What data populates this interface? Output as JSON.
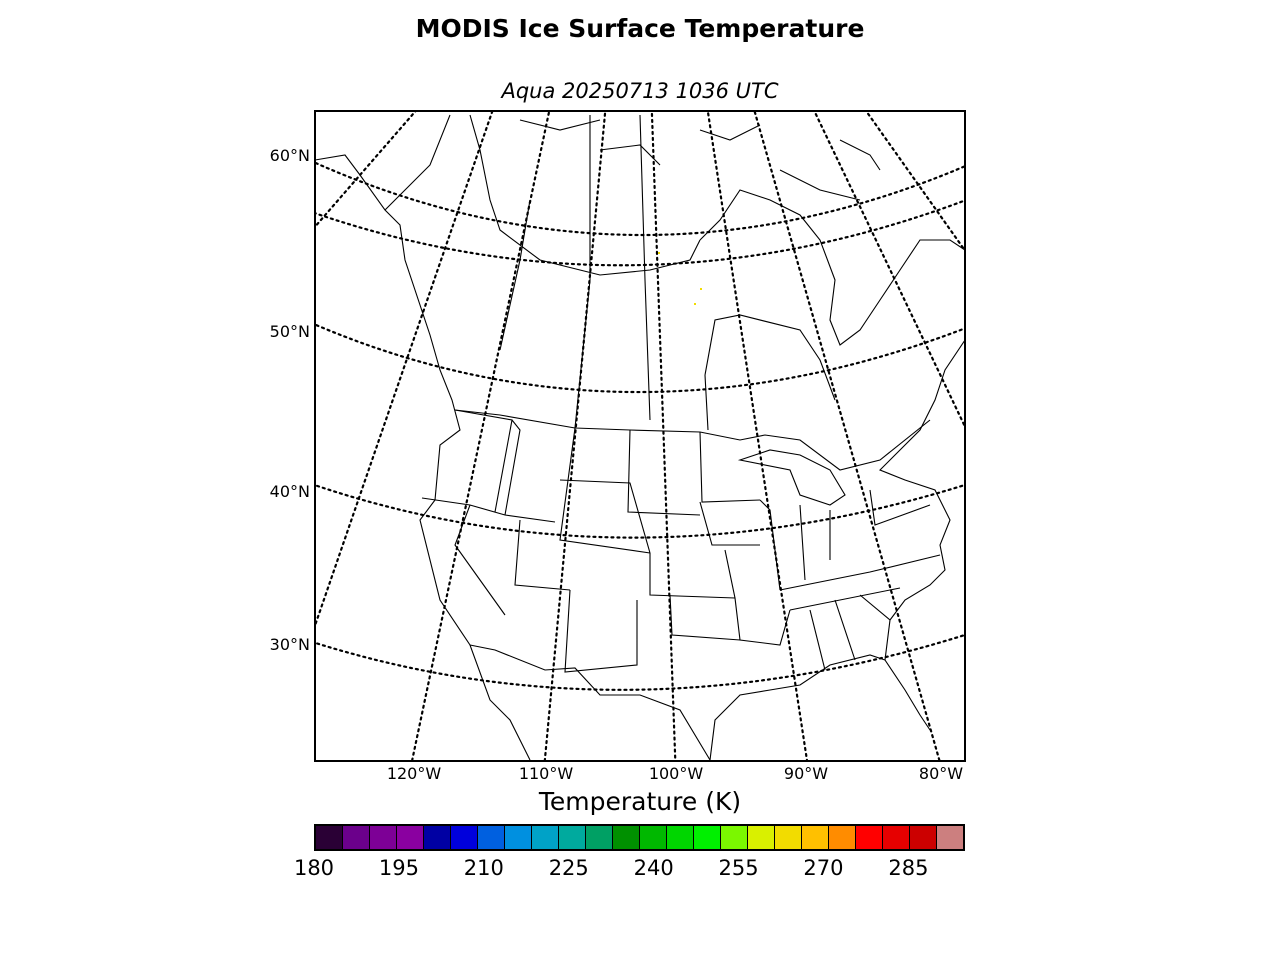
{
  "title": "MODIS Ice Surface Temperature",
  "subtitle": "Aqua 20250713 1036 UTC",
  "map": {
    "lat_labels": [
      {
        "text": "60°N",
        "lat": 60
      },
      {
        "text": "50°N",
        "lat": 50
      },
      {
        "text": "40°N",
        "lat": 40
      },
      {
        "text": "30°N",
        "lat": 30
      }
    ],
    "lon_labels": [
      {
        "text": "120°W",
        "lon": -120
      },
      {
        "text": "110°W",
        "lon": -110
      },
      {
        "text": "100°W",
        "lon": -100
      },
      {
        "text": "90°W",
        "lon": -90
      },
      {
        "text": "80°W",
        "lon": -80
      }
    ],
    "graticule_style": "dotted",
    "region": "North America (Canada, United States, northern Mexico)",
    "data_coverage": "nearly empty; a few tiny yellow pixels in central Canada"
  },
  "colorbar": {
    "label": "Temperature (K)",
    "min": 180,
    "max": 295,
    "step": 5,
    "tick_values": [
      "180",
      "195",
      "210",
      "225",
      "240",
      "255",
      "270",
      "285"
    ],
    "colors": [
      "#2a0035",
      "#6b008b",
      "#7d0096",
      "#8a00a0",
      "#0000a3",
      "#0000dc",
      "#0060e0",
      "#0090e0",
      "#00a2c7",
      "#00aa9e",
      "#00a064",
      "#009000",
      "#00b800",
      "#00d600",
      "#00f000",
      "#7bf700",
      "#d9f000",
      "#f2dc00",
      "#ffc000",
      "#ff8c00",
      "#ff0000",
      "#e60000",
      "#cc0000",
      "#cc7f7f"
    ]
  }
}
